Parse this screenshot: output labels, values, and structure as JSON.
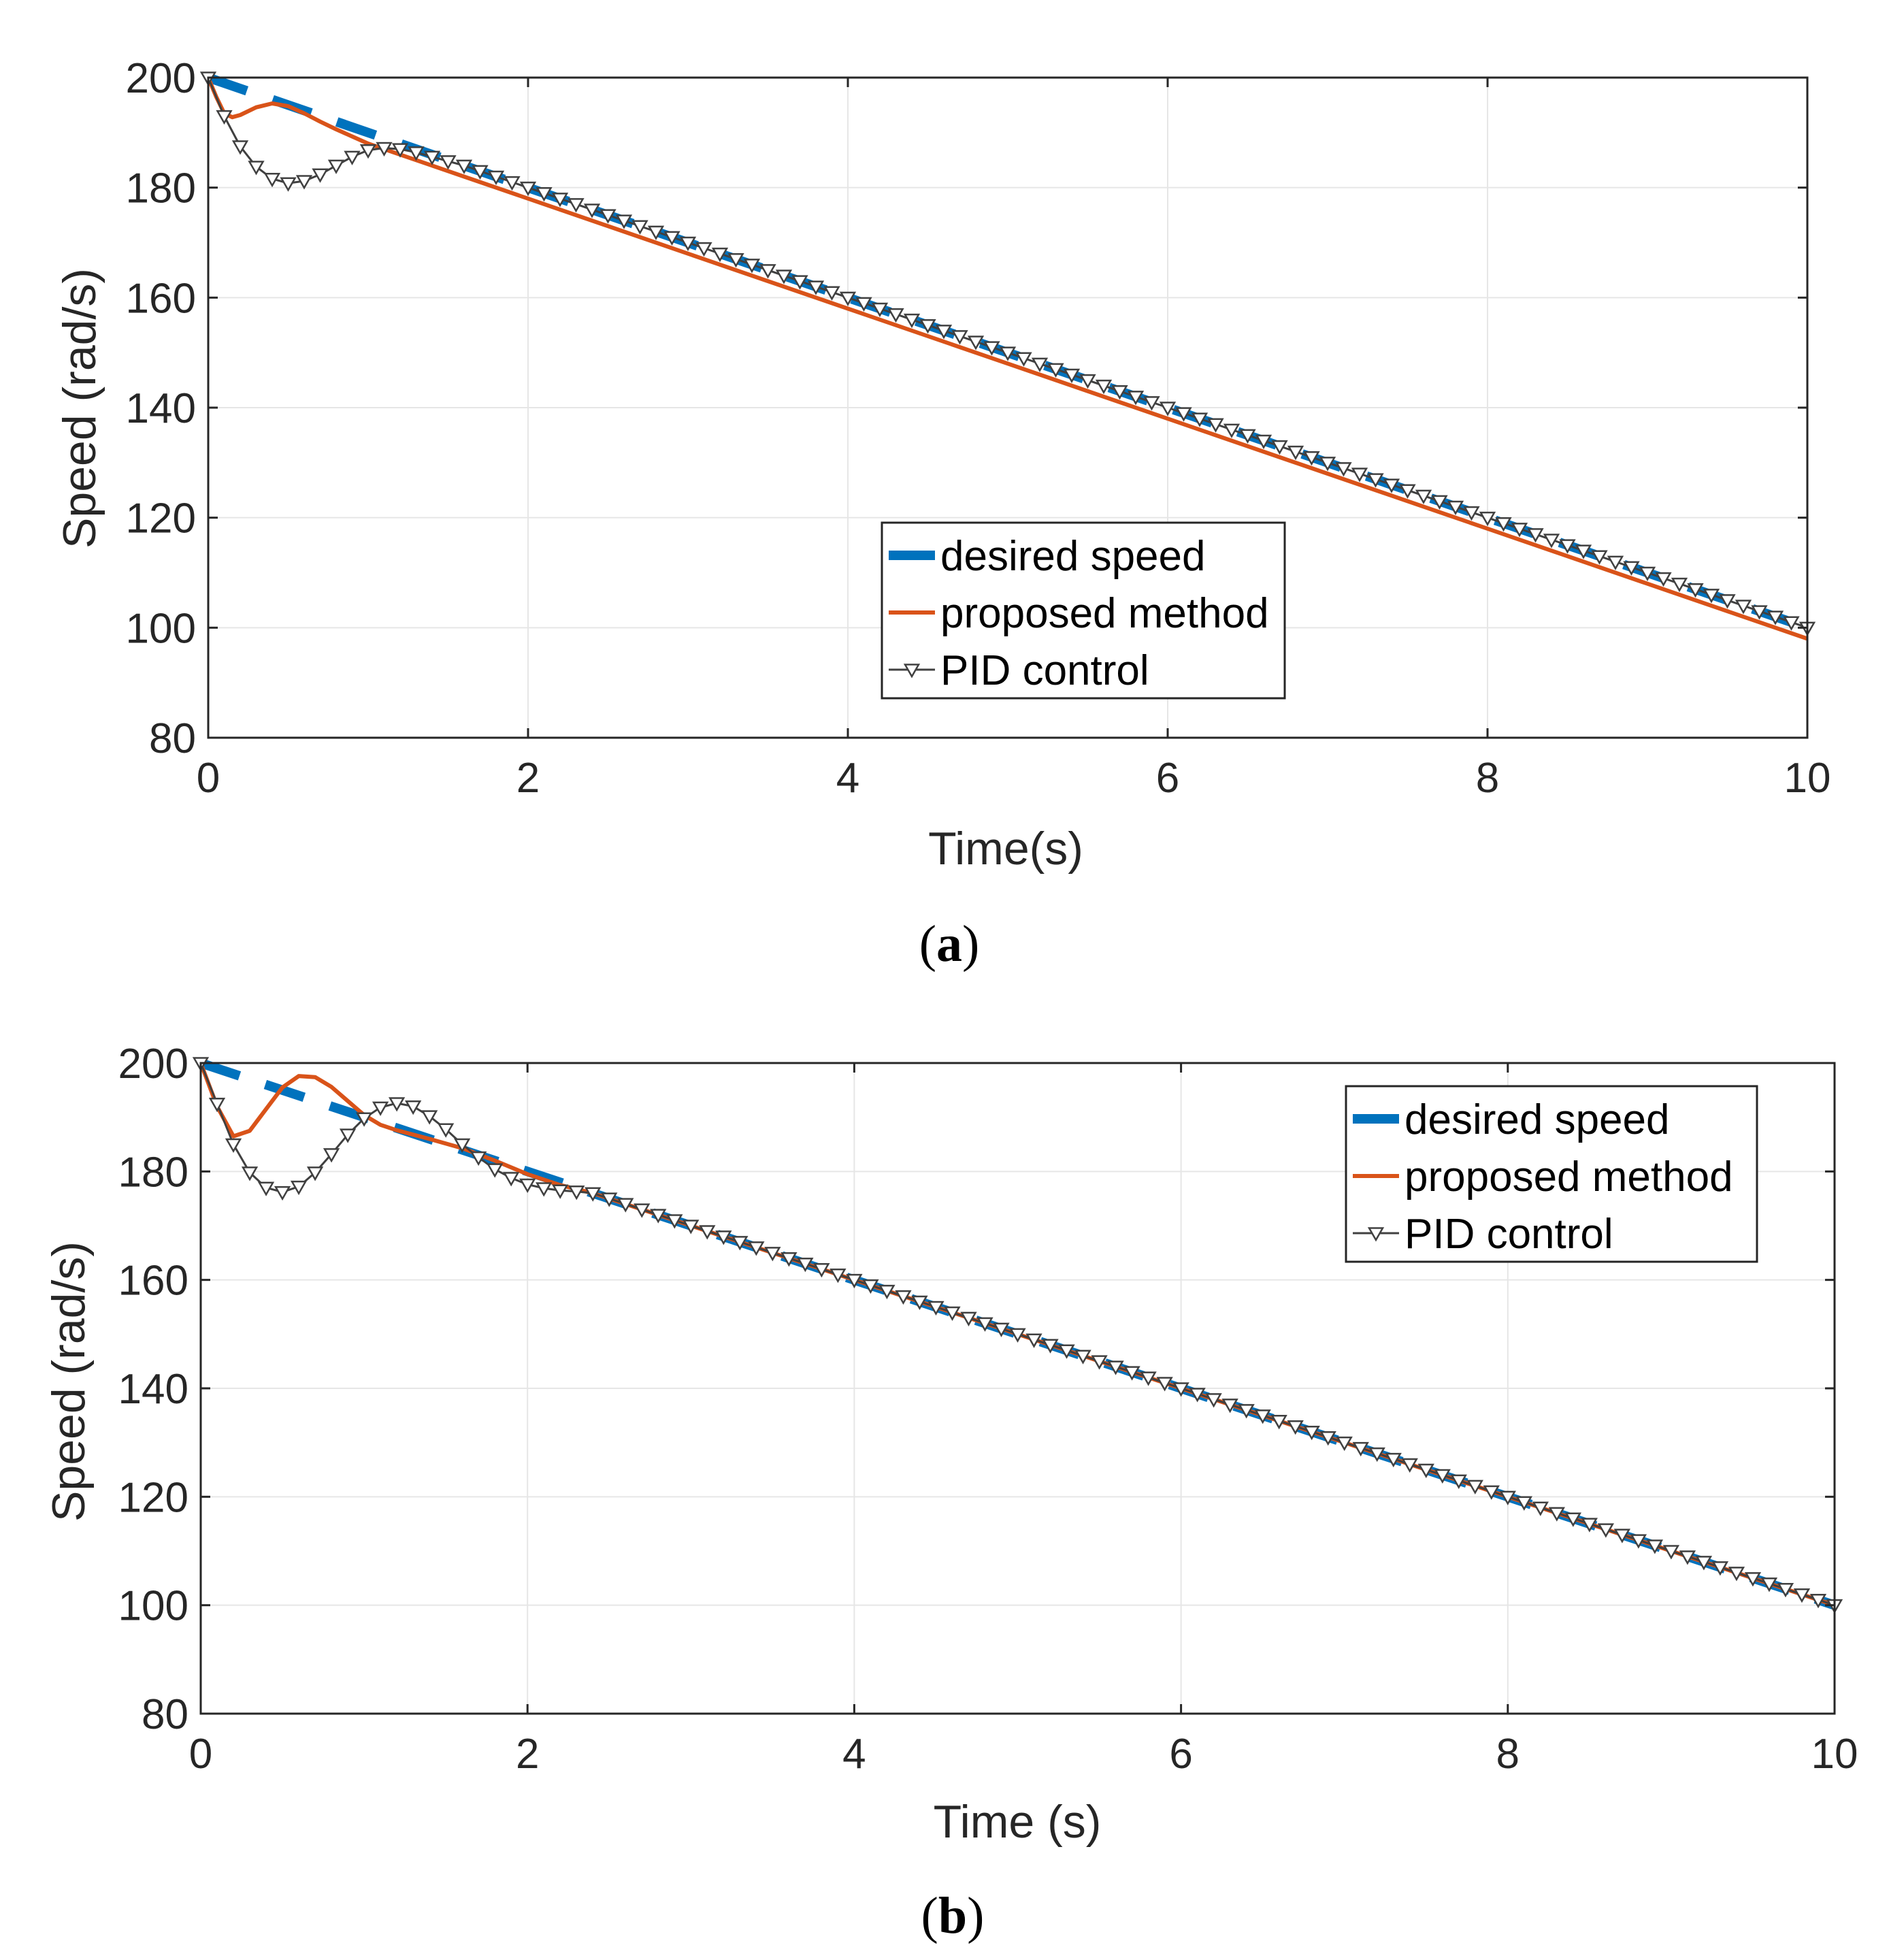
{
  "chart_data": [
    {
      "type": "line",
      "panel": "a",
      "caption": {
        "open": "(",
        "letter": "a",
        "close": ")"
      },
      "xlabel": "Time(s)",
      "ylabel": "Speed (rad/s)",
      "xlim": [
        0,
        10
      ],
      "ylim": [
        80,
        200
      ],
      "xticks": [
        0,
        2,
        4,
        6,
        8,
        10
      ],
      "xtick_labels": [
        "0",
        "2",
        "4",
        "6",
        "8",
        "10"
      ],
      "yticks": [
        80,
        100,
        120,
        140,
        160,
        180,
        200
      ],
      "ytick_labels": [
        "80",
        "100",
        "120",
        "140",
        "160",
        "180",
        "200"
      ],
      "grid": true,
      "legend_placement": "center-bottom",
      "series": [
        {
          "name": "desired speed",
          "color": "#0072BD",
          "style": "dashed-thick",
          "x": [
            0,
            10
          ],
          "y": [
            200,
            100
          ]
        },
        {
          "name": "proposed method",
          "color": "#D95319",
          "style": "solid",
          "x": [
            0,
            0.05,
            0.1,
            0.15,
            0.2,
            0.3,
            0.4,
            0.5,
            0.6,
            0.7,
            0.8,
            0.9,
            1.0,
            1.1,
            1.2,
            1.4,
            1.6,
            2,
            3,
            4,
            5,
            6,
            7,
            8,
            9,
            10
          ],
          "y": [
            200,
            196.5,
            193.5,
            192.8,
            193.2,
            194.6,
            195.3,
            194.8,
            193.5,
            192.0,
            190.6,
            189.3,
            188.0,
            187.0,
            186.0,
            184.0,
            182.0,
            178.0,
            168.0,
            158.0,
            148.0,
            138.0,
            128.0,
            118.0,
            108.0,
            98.0
          ]
        },
        {
          "name": "PID control",
          "color": "#404040",
          "style": "solid-triangle-markers",
          "x": [
            0,
            0.1,
            0.2,
            0.3,
            0.4,
            0.5,
            0.6,
            0.7,
            0.8,
            0.9,
            1.0,
            1.1,
            1.2,
            1.3,
            1.4,
            1.6,
            2,
            3,
            4,
            5,
            6,
            7,
            8,
            9,
            10
          ],
          "y": [
            200,
            193.0,
            187.5,
            183.8,
            181.6,
            180.8,
            181.2,
            182.4,
            184.0,
            185.6,
            186.8,
            187.2,
            187.0,
            186.4,
            185.6,
            184.0,
            180.0,
            170.0,
            160.0,
            150.0,
            140.0,
            130.0,
            120.0,
            110.0,
            100.0
          ]
        }
      ]
    },
    {
      "type": "line",
      "panel": "b",
      "caption": {
        "open": "(",
        "letter": "b",
        "close": ")"
      },
      "xlabel": "Time (s)",
      "ylabel": "Speed (rad/s)",
      "xlim": [
        0,
        10
      ],
      "ylim": [
        80,
        200
      ],
      "xticks": [
        0,
        2,
        4,
        6,
        8,
        10
      ],
      "xtick_labels": [
        "0",
        "2",
        "4",
        "6",
        "8",
        "10"
      ],
      "yticks": [
        80,
        100,
        120,
        140,
        160,
        180,
        200
      ],
      "ytick_labels": [
        "80",
        "100",
        "120",
        "140",
        "160",
        "180",
        "200"
      ],
      "grid": true,
      "legend_placement": "top-right",
      "series": [
        {
          "name": "desired speed",
          "color": "#0072BD",
          "style": "dashed-thick",
          "x": [
            0,
            10
          ],
          "y": [
            200,
            100
          ]
        },
        {
          "name": "proposed method",
          "color": "#D95319",
          "style": "solid",
          "x": [
            0,
            0.1,
            0.2,
            0.3,
            0.4,
            0.5,
            0.6,
            0.7,
            0.8,
            0.9,
            1.0,
            1.1,
            1.2,
            1.4,
            1.6,
            1.8,
            2.0,
            2.2,
            2.4,
            3,
            4,
            5,
            6,
            7,
            8,
            9,
            10
          ],
          "y": [
            200,
            192.0,
            186.5,
            187.5,
            191.5,
            195.5,
            197.6,
            197.4,
            195.6,
            193.0,
            190.4,
            188.6,
            187.6,
            186.0,
            184.3,
            182.0,
            179.5,
            177.5,
            176.0,
            170.0,
            160.0,
            150.0,
            140.0,
            130.0,
            120.0,
            110.0,
            100.0
          ]
        },
        {
          "name": "PID control",
          "color": "#404040",
          "style": "solid-triangle-markers",
          "x": [
            0,
            0.1,
            0.2,
            0.3,
            0.4,
            0.5,
            0.6,
            0.7,
            0.8,
            0.9,
            1.0,
            1.1,
            1.2,
            1.3,
            1.4,
            1.5,
            1.6,
            1.7,
            1.8,
            1.9,
            2.0,
            2.1,
            2.2,
            2.3,
            2.4,
            3,
            4,
            5,
            6,
            7,
            8,
            9,
            10
          ],
          "y": [
            200,
            192.5,
            185.0,
            179.8,
            177.0,
            176.2,
            177.2,
            179.8,
            183.2,
            186.8,
            189.8,
            191.8,
            192.6,
            192.0,
            190.2,
            187.8,
            185.0,
            182.6,
            180.4,
            178.8,
            177.6,
            176.9,
            176.5,
            176.3,
            176.0,
            170.0,
            160.0,
            150.0,
            140.0,
            130.0,
            120.0,
            110.0,
            100.0
          ]
        }
      ]
    }
  ]
}
